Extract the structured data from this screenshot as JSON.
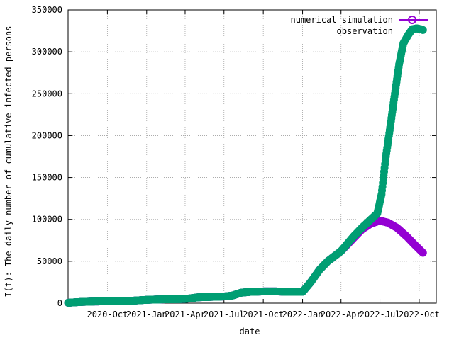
{
  "chart_data": {
    "type": "scatter",
    "xlabel": "date",
    "ylabel": "I(t): The daily number of cumulative infected persons",
    "ylim": [
      0,
      350000
    ],
    "yticks": [
      "0",
      "50000",
      "100000",
      "150000",
      "200000",
      "250000",
      "300000",
      "350000"
    ],
    "ytick_values": [
      0,
      50000,
      100000,
      150000,
      200000,
      250000,
      300000,
      350000
    ],
    "xlim": [
      "2020-07-01",
      "2022-11-10"
    ],
    "xticks": [
      {
        "date": "2020-10-01",
        "label": "2020-Oct"
      },
      {
        "date": "2021-01-01",
        "label": "2021-Jan"
      },
      {
        "date": "2021-04-01",
        "label": "2021-Apr"
      },
      {
        "date": "2021-07-01",
        "label": "2021-Jul"
      },
      {
        "date": "2021-10-01",
        "label": "2021-Oct"
      },
      {
        "date": "2022-01-01",
        "label": "2022-Jan"
      },
      {
        "date": "2022-04-01",
        "label": "2022-Apr"
      },
      {
        "date": "2022-07-01",
        "label": "2022-Jul"
      },
      {
        "date": "2022-10-01",
        "label": "2022-Oct"
      }
    ],
    "grid": true,
    "legend_position": "top-right",
    "series": [
      {
        "name": "numerical simulation",
        "color": "#9400d3",
        "marker": "circle",
        "points": [
          [
            "2020-07-01",
            500
          ],
          [
            "2020-08-01",
            1500
          ],
          [
            "2020-09-01",
            2000
          ],
          [
            "2020-10-01",
            2200
          ],
          [
            "2020-11-01",
            2400
          ],
          [
            "2020-12-01",
            3000
          ],
          [
            "2021-01-01",
            4000
          ],
          [
            "2021-02-01",
            4500
          ],
          [
            "2021-03-01",
            4800
          ],
          [
            "2021-04-01",
            5000
          ],
          [
            "2021-05-01",
            7000
          ],
          [
            "2021-06-01",
            7500
          ],
          [
            "2021-07-01",
            8000
          ],
          [
            "2021-07-20",
            9000
          ],
          [
            "2021-08-10",
            12500
          ],
          [
            "2021-09-01",
            13500
          ],
          [
            "2021-10-01",
            14000
          ],
          [
            "2021-11-01",
            14000
          ],
          [
            "2021-12-01",
            13500
          ],
          [
            "2022-01-01",
            13500
          ],
          [
            "2022-01-20",
            25000
          ],
          [
            "2022-02-10",
            40000
          ],
          [
            "2022-03-01",
            50000
          ],
          [
            "2022-04-01",
            62000
          ],
          [
            "2022-05-01",
            78000
          ],
          [
            "2022-05-20",
            88000
          ],
          [
            "2022-06-10",
            95000
          ],
          [
            "2022-07-01",
            98500
          ],
          [
            "2022-07-20",
            96000
          ],
          [
            "2022-08-10",
            90000
          ],
          [
            "2022-09-01",
            80000
          ],
          [
            "2022-09-20",
            70000
          ],
          [
            "2022-10-10",
            60000
          ]
        ]
      },
      {
        "name": "observation",
        "color": "#009e73",
        "marker": "circle",
        "points": [
          [
            "2020-07-01",
            500
          ],
          [
            "2020-08-01",
            1500
          ],
          [
            "2020-09-01",
            2000
          ],
          [
            "2020-10-01",
            2200
          ],
          [
            "2020-11-01",
            2400
          ],
          [
            "2020-12-01",
            3000
          ],
          [
            "2021-01-01",
            4000
          ],
          [
            "2021-02-01",
            4500
          ],
          [
            "2021-03-01",
            4800
          ],
          [
            "2021-04-01",
            5000
          ],
          [
            "2021-05-01",
            7000
          ],
          [
            "2021-06-01",
            7500
          ],
          [
            "2021-07-01",
            8000
          ],
          [
            "2021-07-20",
            9000
          ],
          [
            "2021-08-10",
            12500
          ],
          [
            "2021-09-01",
            13500
          ],
          [
            "2021-10-01",
            14000
          ],
          [
            "2021-11-01",
            14000
          ],
          [
            "2021-12-01",
            13500
          ],
          [
            "2022-01-01",
            13500
          ],
          [
            "2022-01-20",
            25000
          ],
          [
            "2022-02-10",
            40000
          ],
          [
            "2022-03-01",
            50000
          ],
          [
            "2022-04-01",
            62000
          ],
          [
            "2022-05-01",
            80000
          ],
          [
            "2022-05-20",
            90000
          ],
          [
            "2022-06-10",
            100000
          ],
          [
            "2022-06-25",
            107000
          ],
          [
            "2022-07-05",
            130000
          ],
          [
            "2022-07-15",
            175000
          ],
          [
            "2022-07-25",
            210000
          ],
          [
            "2022-08-05",
            250000
          ],
          [
            "2022-08-15",
            285000
          ],
          [
            "2022-08-25",
            310000
          ],
          [
            "2022-09-05",
            320000
          ],
          [
            "2022-09-15",
            327000
          ],
          [
            "2022-09-25",
            328000
          ],
          [
            "2022-10-05",
            327000
          ],
          [
            "2022-10-10",
            326000
          ]
        ]
      }
    ]
  }
}
